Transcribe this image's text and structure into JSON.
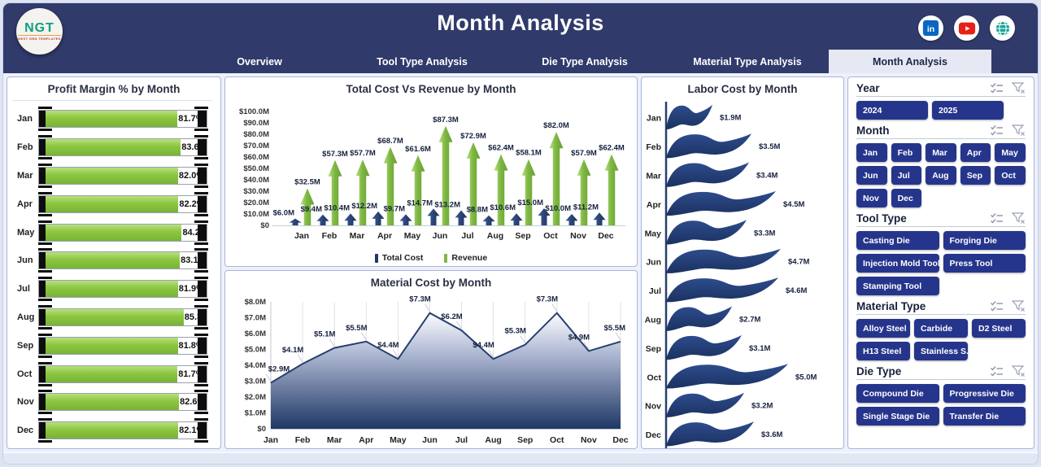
{
  "header": {
    "title": "Month Analysis",
    "logo": {
      "text": "NGT",
      "subtext": "NEXT GEN TEMPLATES"
    },
    "social_icons": [
      "linkedin-icon",
      "youtube-icon",
      "globe-icon"
    ],
    "tabs": [
      {
        "label": "Overview",
        "active": false
      },
      {
        "label": "Tool Type Analysis",
        "active": false
      },
      {
        "label": "Die Type Analysis",
        "active": false
      },
      {
        "label": "Material Type Analysis",
        "active": false
      },
      {
        "label": "Month Analysis",
        "active": true
      }
    ]
  },
  "colors": {
    "header_bg": "#303a6b",
    "navy": "#1f3864",
    "green": "#8cc63e",
    "button_navy": "#26358c",
    "active_tab_bg": "#e6e9f4"
  },
  "months": [
    "Jan",
    "Feb",
    "Mar",
    "Apr",
    "May",
    "Jun",
    "Jul",
    "Aug",
    "Sep",
    "Oct",
    "Nov",
    "Dec"
  ],
  "chart_data": [
    {
      "id": "profit_margin",
      "type": "bar",
      "orientation": "horizontal",
      "title": "Profit Margin % by Month",
      "categories": [
        "Jan",
        "Feb",
        "Mar",
        "Apr",
        "May",
        "Jun",
        "Jul",
        "Aug",
        "Sep",
        "Oct",
        "Nov",
        "Dec"
      ],
      "values": [
        81.7,
        83.6,
        82.0,
        82.2,
        84.2,
        83.1,
        81.9,
        85.3,
        81.8,
        81.7,
        82.6,
        82.1
      ],
      "labels": [
        "81.7%",
        "83.6%",
        "82.0%",
        "82.2%",
        "84.2%",
        "83.1%",
        "81.9%",
        "85.3%",
        "81.8%",
        "81.7%",
        "82.6%",
        "82.1%"
      ],
      "xlim": [
        0,
        100
      ],
      "bar_color": "#8cc63e"
    },
    {
      "id": "cost_vs_revenue",
      "type": "bar",
      "title": "Total Cost Vs Revenue by Month",
      "categories": [
        "Jan",
        "Feb",
        "Mar",
        "Apr",
        "May",
        "Jun",
        "Jul",
        "Aug",
        "Sep",
        "Oct",
        "Nov",
        "Dec"
      ],
      "series": [
        {
          "name": "Total Cost",
          "color": "#1f3864",
          "values": [
            6.0,
            9.4,
            10.4,
            12.2,
            9.7,
            14.7,
            13.2,
            8.8,
            10.6,
            15.0,
            10.0,
            11.2
          ],
          "labels": [
            "$6.0M",
            "$9.4M",
            "$10.4M",
            "$12.2M",
            "$9.7M",
            "$14.7M",
            "$13.2M",
            "$8.8M",
            "$10.6M",
            "$15.0M",
            "$10.0M",
            "$11.2M"
          ]
        },
        {
          "name": "Revenue",
          "color": "#7fb843",
          "values": [
            32.5,
            57.3,
            57.7,
            68.7,
            61.6,
            87.3,
            72.9,
            62.4,
            58.1,
            82.0,
            57.9,
            62.4
          ],
          "labels": [
            "$32.5M",
            "$57.3M",
            "$57.7M",
            "$68.7M",
            "$61.6M",
            "$87.3M",
            "$72.9M",
            "$62.4M",
            "$58.1M",
            "$82.0M",
            "$57.9M",
            "$62.4M"
          ]
        }
      ],
      "ylim": [
        0,
        100
      ],
      "yticks": [
        "$100.0M",
        "$90.0M",
        "$80.0M",
        "$70.0M",
        "$60.0M",
        "$50.0M",
        "$40.0M",
        "$30.0M",
        "$20.0M",
        "$10.0M",
        "$0"
      ],
      "legend_position": "bottom"
    },
    {
      "id": "material_cost",
      "type": "area",
      "title": "Material Cost by Month",
      "categories": [
        "Jan",
        "Feb",
        "Mar",
        "Apr",
        "May",
        "Jun",
        "Jul",
        "Aug",
        "Sep",
        "Oct",
        "Nov",
        "Dec"
      ],
      "values": [
        2.9,
        4.1,
        5.1,
        5.5,
        4.4,
        7.3,
        6.2,
        4.4,
        5.3,
        7.3,
        4.9,
        5.5
      ],
      "labels": [
        "$2.9M",
        "$4.1M",
        "$5.1M",
        "$5.5M",
        "$4.4M",
        "$7.3M",
        "$6.2M",
        "$4.4M",
        "$5.3M",
        "$7.3M",
        "$4.9M",
        "$5.5M"
      ],
      "ylim": [
        0,
        8
      ],
      "yticks": [
        "$8.0M",
        "$7.0M",
        "$6.0M",
        "$5.0M",
        "$4.0M",
        "$3.0M",
        "$2.0M",
        "$1.0M",
        "$0"
      ],
      "grid": "vertical",
      "line_color": "#27406e"
    },
    {
      "id": "labor_cost",
      "type": "bar",
      "orientation": "horizontal",
      "shape": "wave-flag",
      "title": "Labor Cost by Month",
      "categories": [
        "Jan",
        "Feb",
        "Mar",
        "Apr",
        "May",
        "Jun",
        "Jul",
        "Aug",
        "Sep",
        "Oct",
        "Nov",
        "Dec"
      ],
      "values": [
        1.9,
        3.5,
        3.4,
        4.5,
        3.3,
        4.7,
        4.6,
        2.7,
        3.1,
        5.0,
        3.2,
        3.6
      ],
      "labels": [
        "$1.9M",
        "$3.5M",
        "$3.4M",
        "$4.5M",
        "$3.3M",
        "$4.7M",
        "$4.6M",
        "$2.7M",
        "$3.1M",
        "$5.0M",
        "$3.2M",
        "$3.6M"
      ],
      "bar_color": "#1f3864",
      "xlim": [
        0,
        5
      ]
    }
  ],
  "filters": [
    {
      "title": "Year",
      "options": [
        "2024",
        "2025"
      ]
    },
    {
      "title": "Month",
      "options": [
        "Jan",
        "Feb",
        "Mar",
        "Apr",
        "May",
        "Jun",
        "Jul",
        "Aug",
        "Sep",
        "Oct",
        "Nov",
        "Dec"
      ]
    },
    {
      "title": "Tool Type",
      "options": [
        "Casting Die",
        "Forging Die",
        "Injection Mold Tool",
        "Press Tool",
        "Stamping Tool"
      ]
    },
    {
      "title": "Material Type",
      "options": [
        "Alloy Steel",
        "Carbide",
        "D2 Steel",
        "H13 Steel",
        "Stainless S..."
      ]
    },
    {
      "title": "Die Type",
      "options": [
        "Compound Die",
        "Progressive Die",
        "Single Stage Die",
        "Transfer Die"
      ]
    }
  ]
}
